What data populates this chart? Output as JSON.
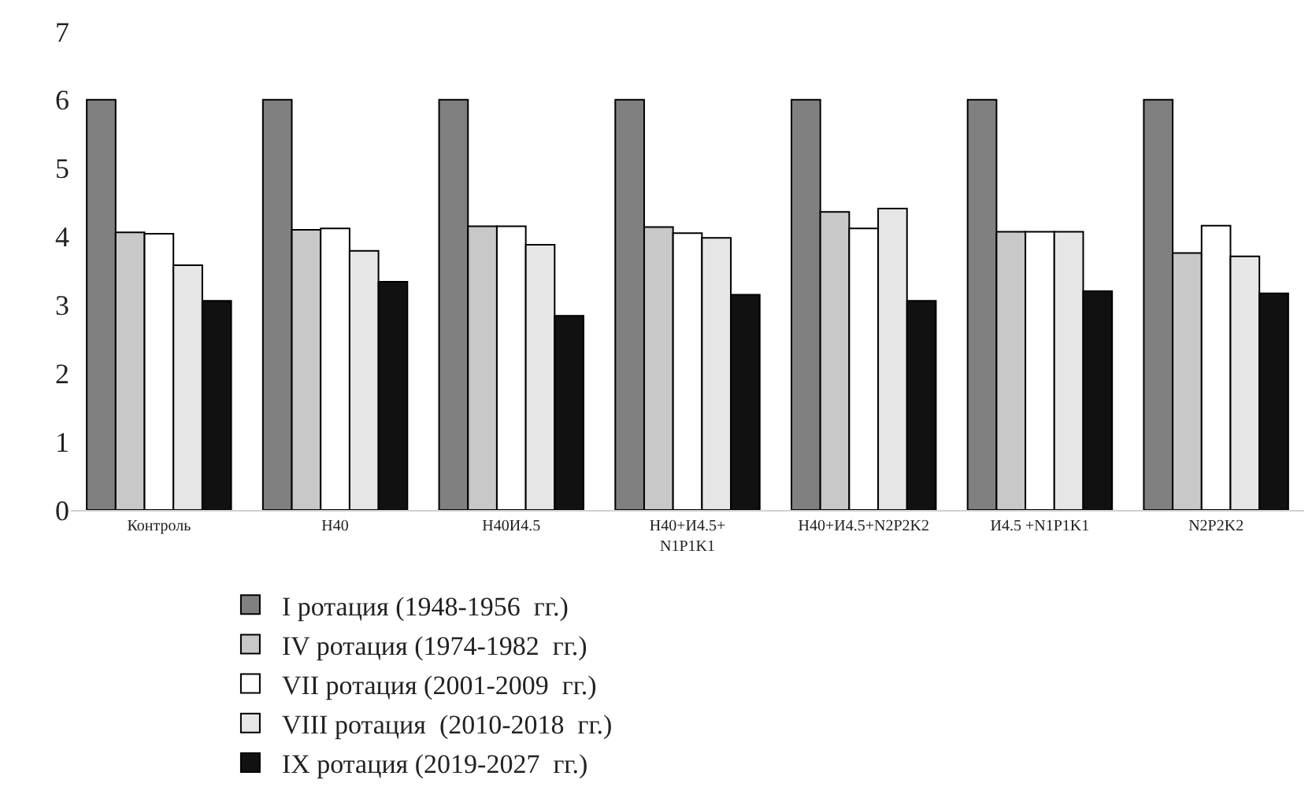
{
  "chart_data": {
    "type": "bar",
    "categories": [
      "Контроль",
      "Н40",
      "Н40И4.5",
      "Н40+И4.5+\nN1P1K1",
      "Н40+И4.5+N2P2K2",
      "И4.5 +N1P1K1",
      "N2P2K2"
    ],
    "series": [
      {
        "name": "I ротация (1948-1956  гг.)",
        "color": "#808080",
        "values": [
          6.0,
          6.0,
          6.0,
          6.0,
          6.0,
          6.0,
          6.0
        ]
      },
      {
        "name": "IV ротация (1974-1982  гг.)",
        "color": "#c8c8c8",
        "values": [
          4.06,
          4.1,
          4.15,
          4.14,
          4.36,
          4.07,
          3.76
        ]
      },
      {
        "name": "VII ротация (2001-2009  гг.)",
        "color": "#ffffff",
        "values": [
          4.04,
          4.12,
          4.15,
          4.05,
          4.12,
          4.07,
          4.16
        ]
      },
      {
        "name": "VIII ротация  (2010-2018  гг.)",
        "color": "#e6e6e6",
        "values": [
          3.58,
          3.79,
          3.88,
          3.98,
          4.41,
          4.07,
          3.71
        ]
      },
      {
        "name": "IX ротация (2019-2027  гг.)",
        "color": "#111111",
        "values": [
          3.06,
          3.34,
          2.84,
          3.15,
          3.06,
          3.2,
          3.17
        ]
      }
    ],
    "ylim": [
      0,
      7
    ],
    "yticks": [
      0,
      1,
      2,
      3,
      4,
      5,
      6,
      7
    ],
    "legend": "bottom"
  }
}
